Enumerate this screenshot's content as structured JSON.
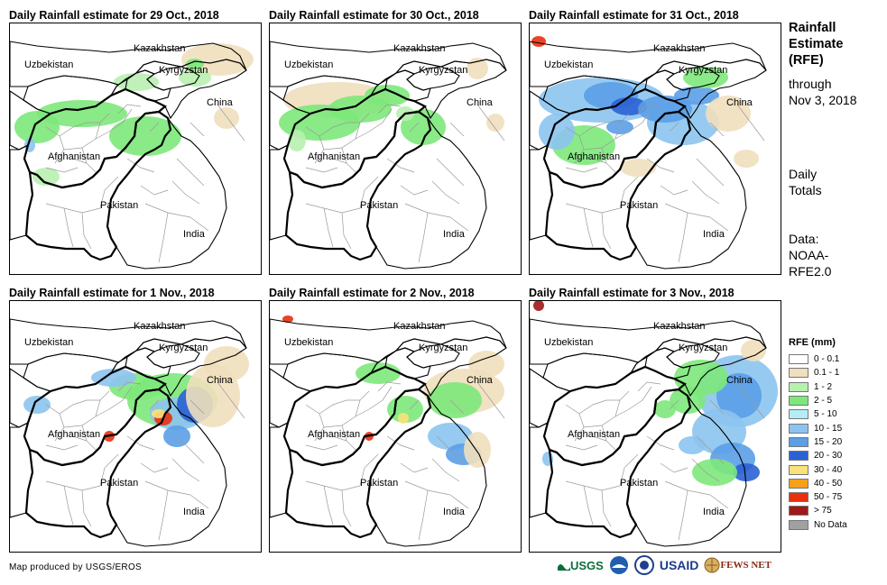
{
  "panels": [
    {
      "title": "Daily Rainfall estimate for 29 Oct., 2018"
    },
    {
      "title": "Daily Rainfall estimate for 30 Oct., 2018"
    },
    {
      "title": "Daily Rainfall estimate for 31 Oct., 2018"
    },
    {
      "title": "Daily Rainfall estimate for 1 Nov., 2018"
    },
    {
      "title": "Daily Rainfall estimate for 2 Nov., 2018"
    },
    {
      "title": "Daily Rainfall estimate for 3 Nov., 2018"
    }
  ],
  "country_labels": {
    "kazakhstan": "Kazakhstan",
    "uzbekistan": "Uzbekistan",
    "kyrgyzstan": "Kyrgyzstan",
    "china": "China",
    "afghanistan": "Afghanistan",
    "pakistan": "Pakistan",
    "india": "India"
  },
  "side": {
    "title_line1": "Rainfall",
    "title_line2": "Estimate",
    "title_line3": "(RFE)",
    "through_line1": "through",
    "through_line2": "Nov 3, 2018",
    "daily_line1": "Daily",
    "daily_line2": "Totals",
    "data_line1": "Data:",
    "data_line2": "NOAA-",
    "data_line3": "RFE2.0"
  },
  "legend": {
    "title": "RFE (mm)",
    "items": [
      {
        "label": "0 - 0.1",
        "color": "#ffffff"
      },
      {
        "label": "0.1 - 1",
        "color": "#f0dfbd"
      },
      {
        "label": "1 - 2",
        "color": "#b8f0b0"
      },
      {
        "label": "2 - 5",
        "color": "#7de87a"
      },
      {
        "label": "5 - 10",
        "color": "#b5ecf5"
      },
      {
        "label": "10 - 15",
        "color": "#8cc4ef"
      },
      {
        "label": "15 - 20",
        "color": "#5a9fe8"
      },
      {
        "label": "20 - 30",
        "color": "#2a62d4"
      },
      {
        "label": "30 - 40",
        "color": "#f8e27a"
      },
      {
        "label": "40 - 50",
        "color": "#f8a01a"
      },
      {
        "label": "50 - 75",
        "color": "#e8300e"
      },
      {
        "label": "> 75",
        "color": "#a01818"
      },
      {
        "label": "No Data",
        "color": "#a0a0a0"
      }
    ]
  },
  "credit": "Map produced by USGS/EROS",
  "logos": {
    "usgs": "USGS",
    "usaid": "USAID",
    "fewsnet": "FEWS NET"
  }
}
